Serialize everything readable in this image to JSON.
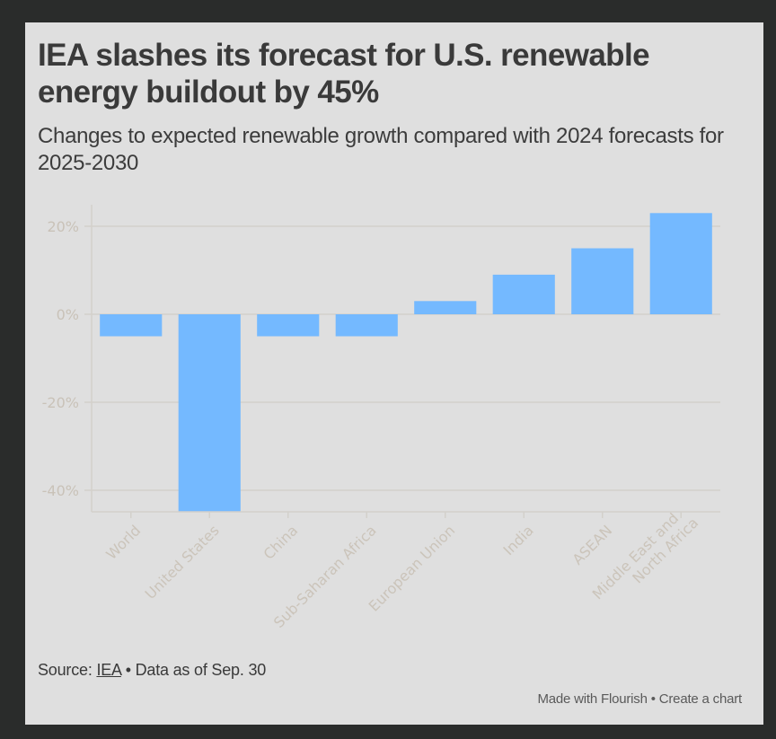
{
  "header": {
    "title": "IEA slashes its forecast for U.S. renewable energy buildout by 45%",
    "subtitle": "Changes to expected renewable growth compared with 2024 forecasts for 2025-2030"
  },
  "footer": {
    "source_prefix": "Source:",
    "source_link": "IEA",
    "source_suffix": "• Data as of Sep. 30",
    "made_with": "Made with Flourish",
    "separator": "•",
    "create_chart": "Create a chart"
  },
  "colors": {
    "bar": "#74b9ff",
    "background": "#dfdfdf",
    "page_background": "#2a2c2b"
  },
  "chart_data": {
    "type": "bar",
    "title": "IEA slashes its forecast for U.S. renewable energy buildout by 45%",
    "subtitle": "Changes to expected renewable growth compared with 2024 forecasts for 2025-2030",
    "categories": [
      "World",
      "United States",
      "China",
      "Sub-Saharan Africa",
      "European Union",
      "India",
      "ASEAN",
      "Middle East and North Africa"
    ],
    "category_lines": [
      [
        "World"
      ],
      [
        "United States"
      ],
      [
        "China"
      ],
      [
        "Sub-Saharan Africa"
      ],
      [
        "European Union"
      ],
      [
        "India"
      ],
      [
        "ASEAN"
      ],
      [
        "Middle East and",
        "North Africa"
      ]
    ],
    "values": [
      -5,
      -45,
      -5,
      -5,
      3,
      9,
      15,
      23
    ],
    "unit": "%",
    "xlabel": "",
    "ylabel": "",
    "ylim": [
      -45,
      25
    ],
    "yticks": [
      20,
      0,
      -20,
      -40
    ],
    "ytick_labels": [
      "20%",
      "0%",
      "-20%",
      "-40%"
    ],
    "grid": true,
    "legend": "none"
  }
}
